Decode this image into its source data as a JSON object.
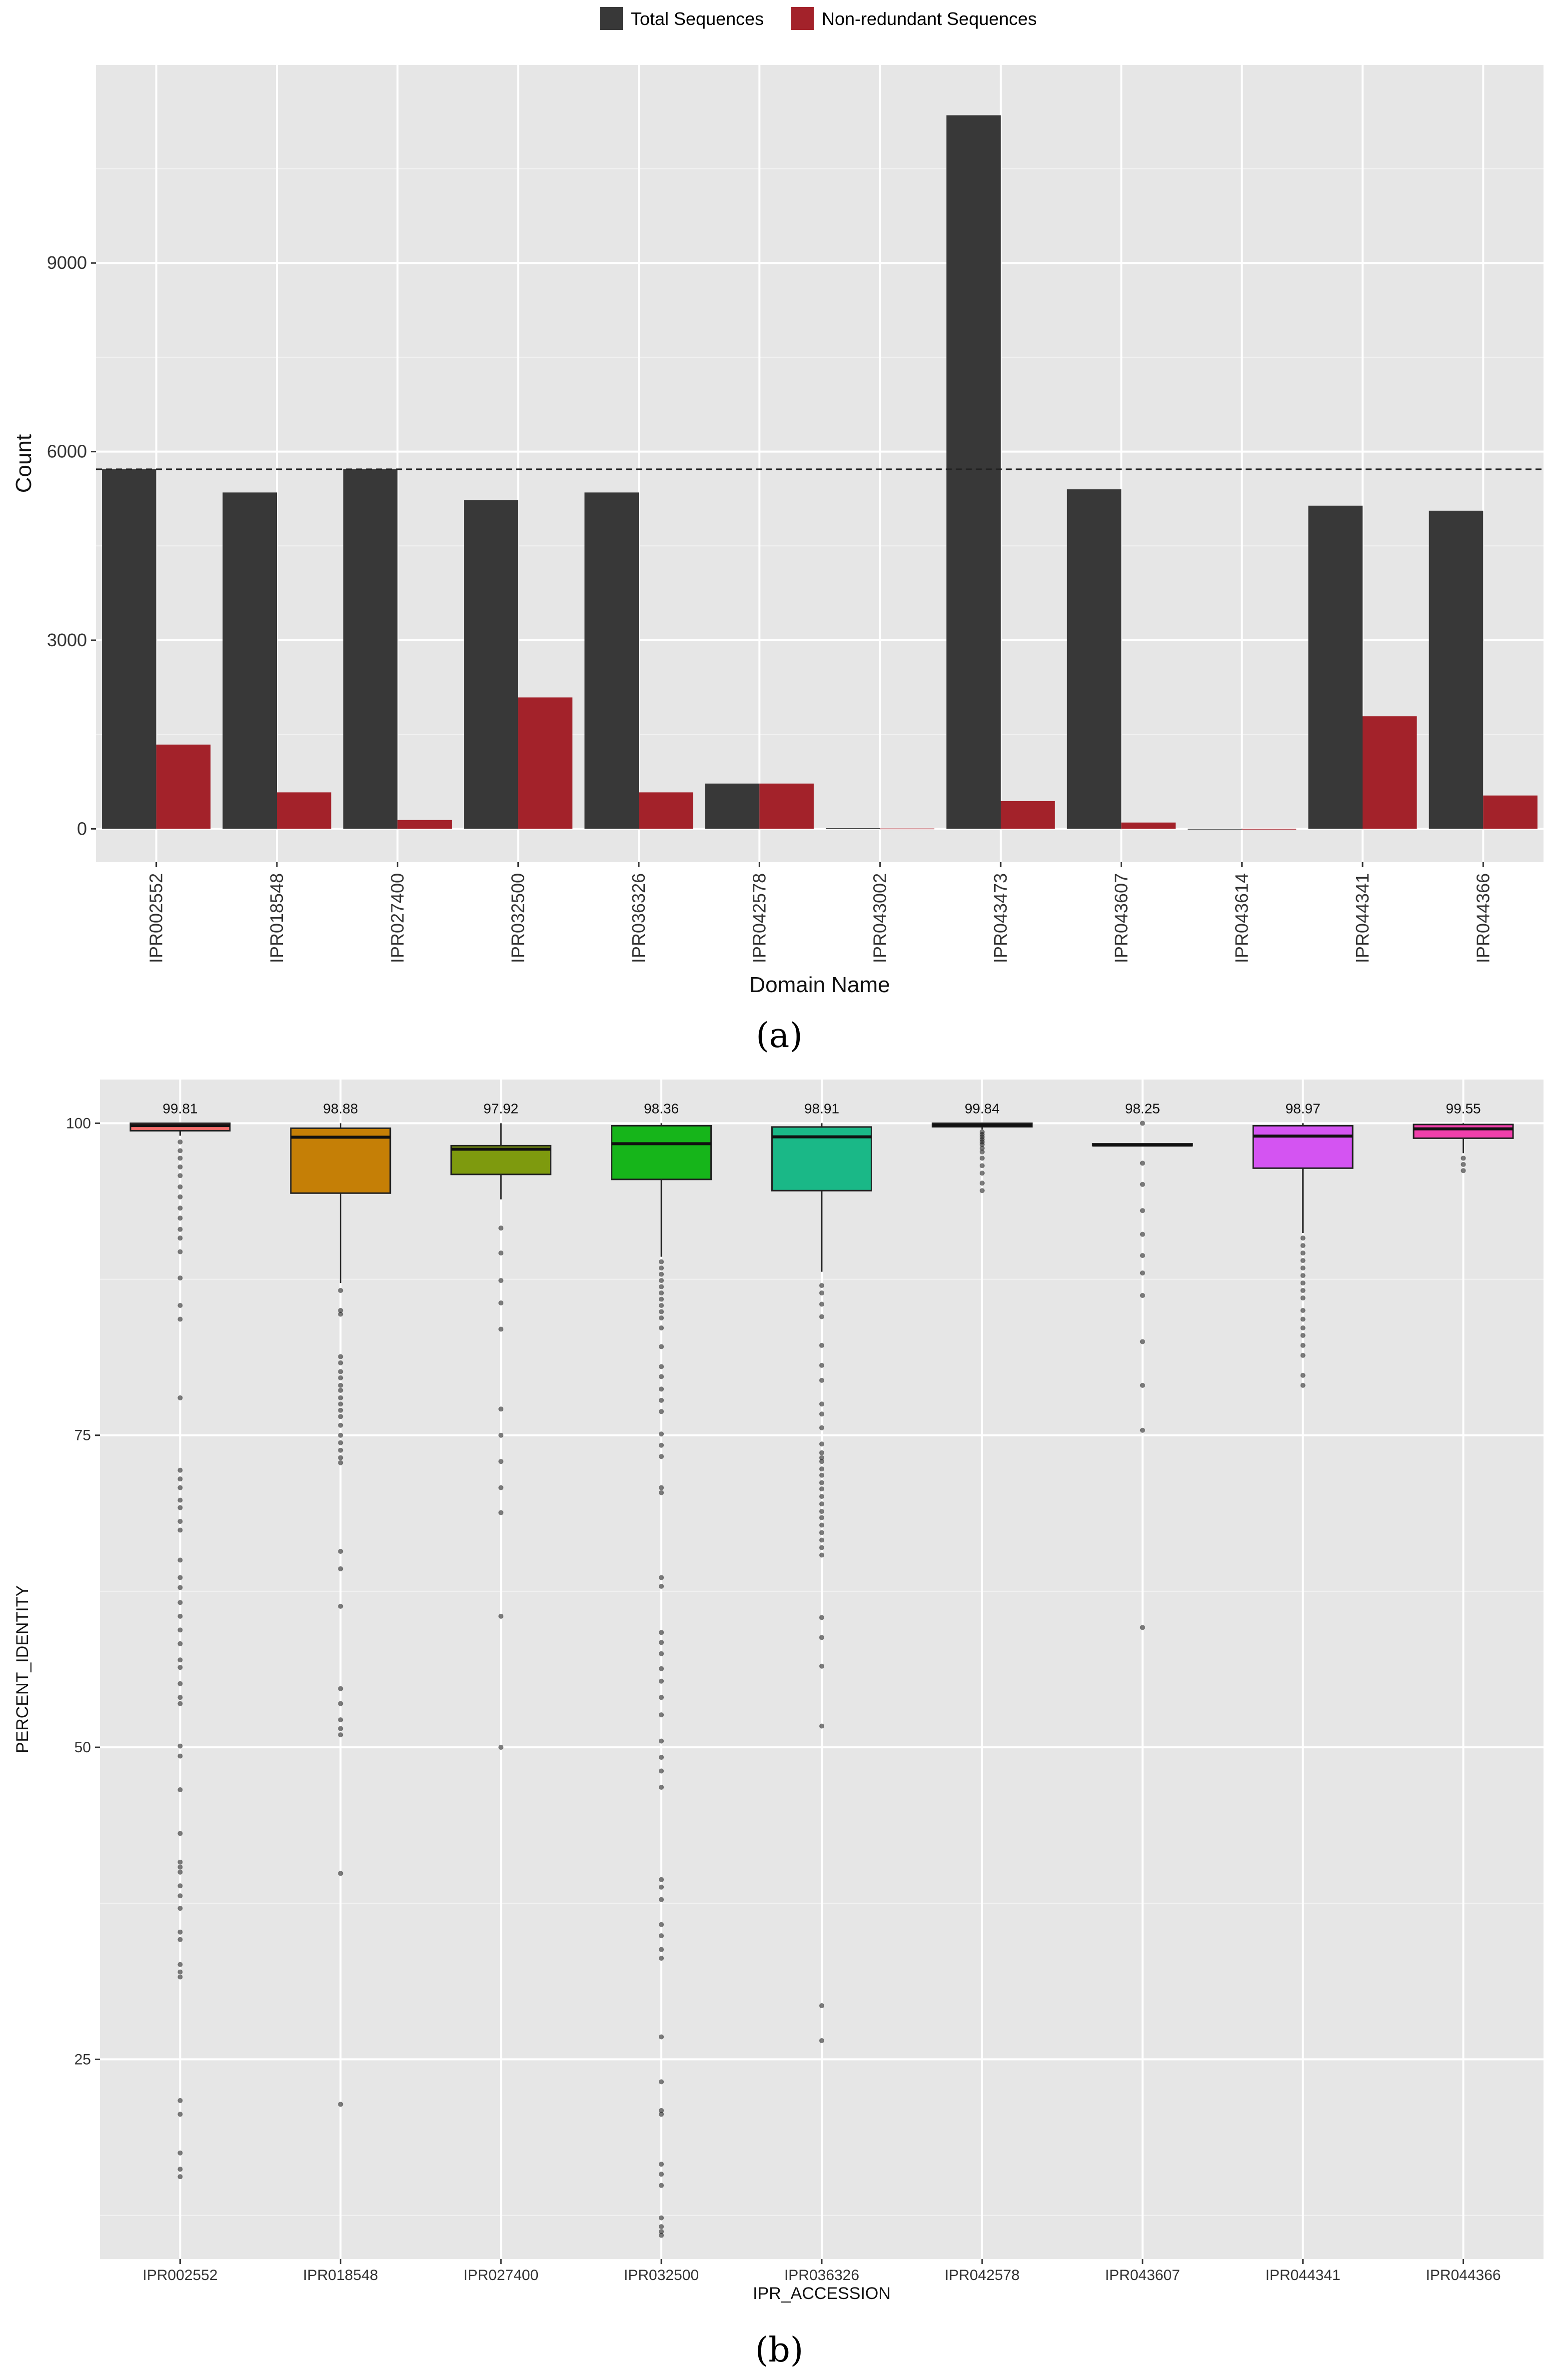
{
  "chart_data": [
    {
      "type": "bar",
      "panel_label": "(a)",
      "title": "",
      "xlabel": "Domain Name",
      "ylabel": "Count",
      "legend_position": "top",
      "categories": [
        "IPR002552",
        "IPR018548",
        "IPR027400",
        "IPR032500",
        "IPR036326",
        "IPR042578",
        "IPR043002",
        "IPR043473",
        "IPR043607",
        "IPR043614",
        "IPR044341",
        "IPR044366"
      ],
      "series": [
        {
          "name": "Total Sequences",
          "color": "#383838",
          "values": [
            5720,
            5350,
            5720,
            5230,
            5350,
            720,
            10,
            11350,
            5400,
            0,
            5140,
            5060
          ]
        },
        {
          "name": "Non-redundant Sequences",
          "color": "#a3222a",
          "values": [
            1340,
            580,
            140,
            2090,
            580,
            720,
            5,
            440,
            100,
            0,
            1790,
            530
          ]
        }
      ],
      "reference_line": 5720,
      "yticks": [
        0,
        3000,
        6000,
        9000
      ],
      "ylim": [
        -530,
        12150
      ],
      "grid": true
    },
    {
      "type": "boxplot",
      "panel_label": "(b)",
      "title": "",
      "xlabel": "IPR_ACCESSION",
      "ylabel": "PERCENT_IDENTITY",
      "yticks": [
        25,
        50,
        75,
        100
      ],
      "ylim": [
        9,
        103.5
      ],
      "grid": true,
      "boxes": [
        {
          "category": "IPR002552",
          "color": "#f46d6b",
          "median_label": "99.81",
          "q1": 99.4,
          "median": 99.81,
          "q3": 100,
          "whisker_low": 99.0,
          "whisker_high": 100,
          "outliers": [
            98.5,
            97.8,
            97.2,
            96.5,
            95.8,
            94.9,
            94.1,
            93.2,
            92.4,
            91.5,
            90.8,
            89.7,
            87.6,
            85.4,
            84.3,
            78.0,
            72.2,
            71.5,
            70.8,
            69.8,
            69.2,
            68.1,
            67.4,
            65.0,
            63.6,
            62.8,
            61.6,
            60.5,
            59.4,
            58.3,
            57.0,
            56.4,
            55.1,
            54.0,
            53.5,
            50.1,
            49.3,
            46.6,
            43.1,
            40.8,
            40.4,
            40.0,
            38.9,
            38.1,
            37.1,
            35.2,
            34.6,
            32.6,
            32.0,
            31.6,
            21.7,
            20.6,
            17.5,
            16.2,
            15.6
          ]
        },
        {
          "category": "IPR018548",
          "color": "#c57f06",
          "median_label": "98.88",
          "q1": 94.4,
          "median": 98.88,
          "q3": 99.6,
          "whisker_low": 87.2,
          "whisker_high": 100,
          "outliers": [
            86.6,
            85.0,
            84.7,
            81.3,
            80.8,
            80.1,
            79.6,
            79.0,
            78.6,
            78.0,
            77.5,
            77.0,
            76.5,
            75.8,
            75.0,
            74.4,
            73.8,
            73.2,
            72.8,
            65.7,
            64.3,
            61.3,
            54.7,
            53.5,
            52.2,
            51.5,
            51.0,
            39.9,
            21.4
          ]
        },
        {
          "category": "IPR027400",
          "color": "#7e9a0e",
          "median_label": "97.92",
          "q1": 95.9,
          "median": 97.92,
          "q3": 98.2,
          "whisker_low": 93.9,
          "whisker_high": 100,
          "outliers": [
            91.6,
            89.6,
            87.4,
            85.6,
            83.5,
            77.1,
            75.0,
            72.9,
            70.8,
            68.8,
            60.5,
            50.0
          ]
        },
        {
          "category": "IPR032500",
          "color": "#16b51a",
          "median_label": "98.36",
          "q1": 95.5,
          "median": 98.36,
          "q3": 99.8,
          "whisker_low": 89.3,
          "whisker_high": 100,
          "outliers": [
            88.9,
            88.4,
            87.9,
            87.4,
            86.9,
            86.4,
            85.9,
            85.4,
            84.9,
            84.4,
            83.6,
            82.1,
            80.5,
            79.7,
            78.7,
            77.8,
            76.9,
            75.1,
            74.2,
            73.3,
            70.8,
            70.4,
            63.6,
            62.9,
            59.2,
            58.4,
            57.5,
            56.3,
            55.3,
            54.0,
            52.6,
            50.5,
            49.2,
            48.1,
            46.8,
            39.4,
            38.8,
            37.8,
            35.8,
            34.9,
            33.8,
            33.1,
            26.8,
            23.2,
            20.9,
            20.6,
            16.6,
            15.8,
            14.9,
            12.3,
            11.6,
            11.2,
            10.9
          ]
        },
        {
          "category": "IPR036326",
          "color": "#1ab887",
          "median_label": "98.91",
          "q1": 94.6,
          "median": 98.91,
          "q3": 99.7,
          "whisker_low": 88.1,
          "whisker_high": 100,
          "outliers": [
            87.0,
            86.4,
            85.5,
            84.5,
            82.2,
            80.6,
            79.4,
            77.5,
            76.7,
            75.6,
            74.3,
            73.6,
            73.2,
            72.9,
            72.3,
            71.8,
            71.2,
            70.7,
            70.1,
            69.5,
            68.9,
            68.4,
            67.8,
            67.2,
            66.6,
            66.0,
            65.4,
            60.4,
            58.8,
            56.5,
            51.7,
            29.3,
            26.5
          ]
        },
        {
          "category": "IPR042578",
          "color": "#16b5e8",
          "median_label": "99.84",
          "q1": 99.72,
          "median": 99.84,
          "q3": 100,
          "whisker_low": 99.5,
          "whisker_high": 100,
          "outliers": [
            99.3,
            99.1,
            98.9,
            98.7,
            98.5,
            98.3,
            98.0,
            97.7,
            97.2,
            96.6,
            96.0,
            95.2,
            94.6
          ]
        },
        {
          "category": "IPR043607",
          "color": "#6f8ff2",
          "median_label": "98.25",
          "q1": 98.2,
          "median": 98.25,
          "q3": 98.35,
          "whisker_low": 98.2,
          "whisker_high": 98.35,
          "outliers": [
            100,
            96.8,
            95.1,
            93.0,
            91.1,
            89.4,
            88.0,
            86.2,
            82.5,
            79.0,
            75.4,
            59.6
          ]
        },
        {
          "category": "IPR044341",
          "color": "#d454f2",
          "median_label": "98.97",
          "q1": 96.4,
          "median": 98.97,
          "q3": 99.8,
          "whisker_low": 91.2,
          "whisker_high": 100,
          "outliers": [
            90.8,
            90.2,
            89.6,
            89.0,
            88.4,
            87.8,
            87.2,
            86.6,
            86.0,
            85.0,
            84.3,
            83.6,
            83.0,
            82.2,
            81.4,
            79.8,
            79.0
          ]
        },
        {
          "category": "IPR044366",
          "color": "#f13fab",
          "median_label": "99.55",
          "q1": 98.8,
          "median": 99.55,
          "q3": 99.9,
          "whisker_low": 97.6,
          "whisker_high": 100,
          "outliers": [
            97.2,
            96.7,
            96.2
          ]
        }
      ]
    }
  ]
}
